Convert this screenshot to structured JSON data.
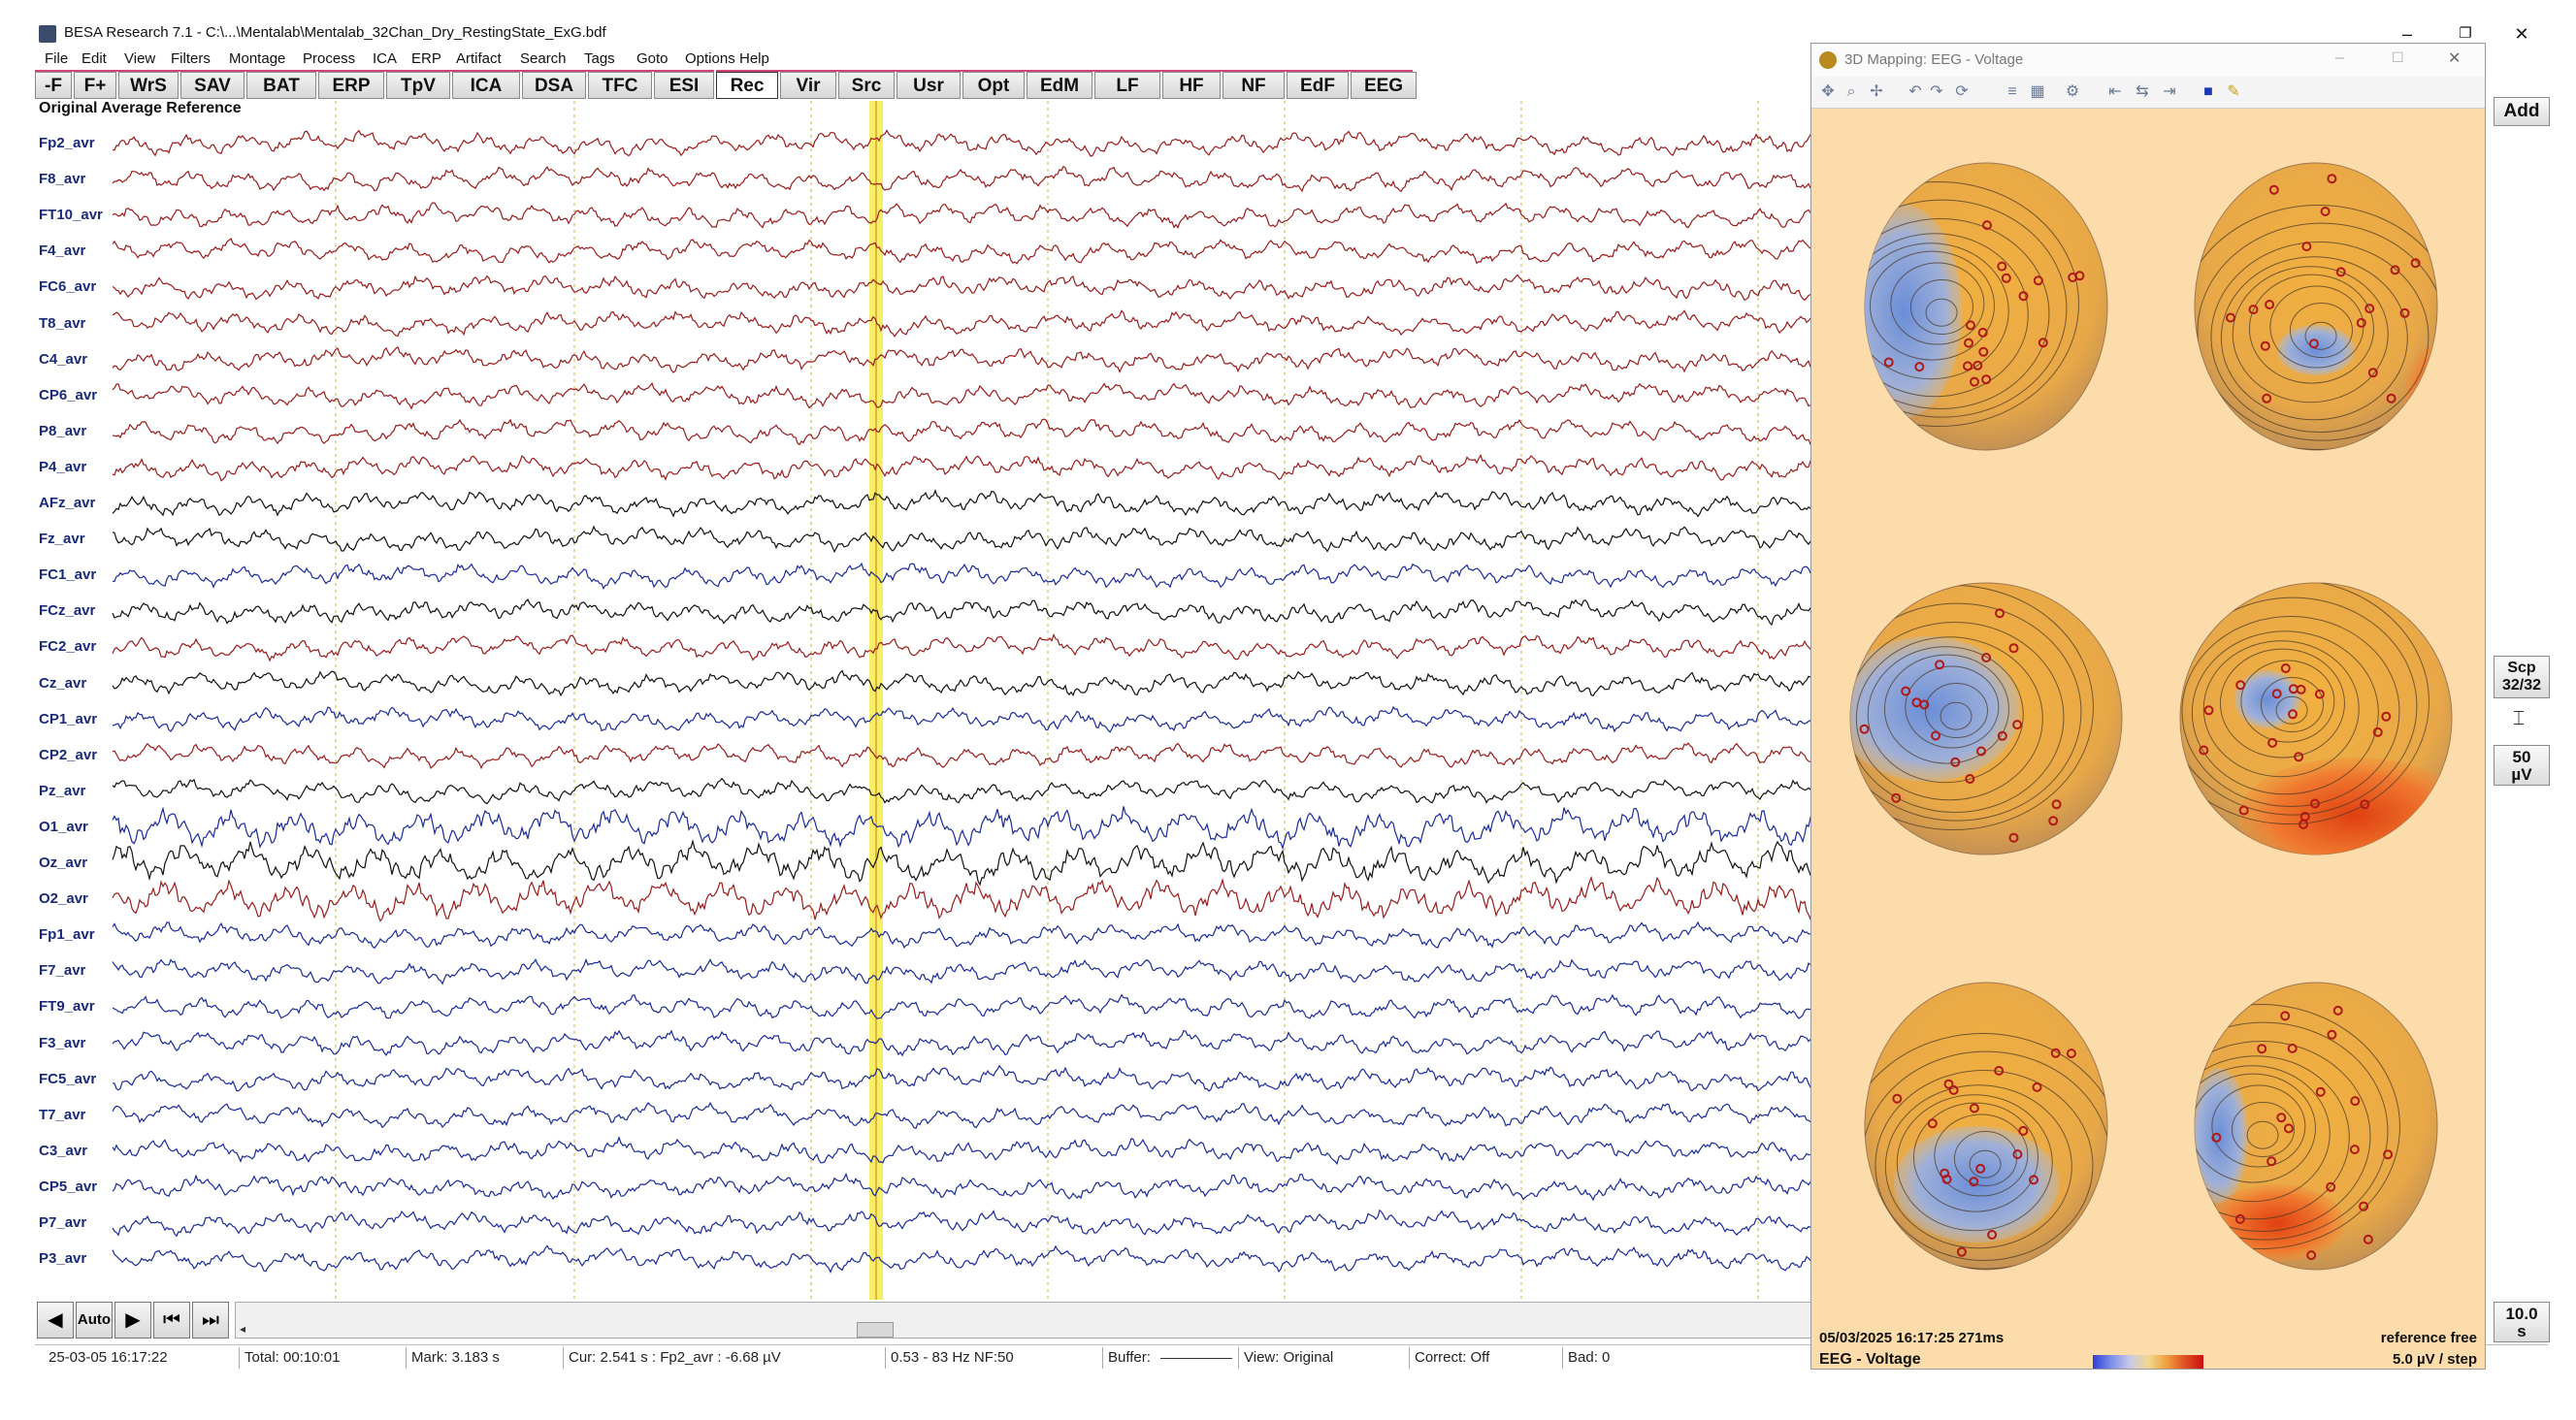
{
  "window": {
    "title": "BESA Research 7.1 - C:\\...\\Mentalab\\Mentalab_32Chan_Dry_RestingState_ExG.bdf",
    "minimize": "–",
    "maximize": "❐",
    "close": "✕"
  },
  "menu": [
    "File",
    "Edit",
    "View",
    "Filters",
    "Montage",
    "Process",
    "ICA",
    "ERP",
    "Artifact",
    "Search",
    "Tags",
    "Goto",
    "Options",
    "Help"
  ],
  "toolbar": [
    "-F",
    "F+",
    "WrS",
    "SAV",
    "BAT",
    "ERP",
    "TpV",
    "ICA",
    "DSA",
    "TFC",
    "ESI",
    "Rec",
    "Vir",
    "Src",
    "Usr",
    "Opt",
    "EdM",
    "LF",
    "HF",
    "NF",
    "EdF",
    "EEG"
  ],
  "toolbar_active": "Rec",
  "montage_label": "Original Average Reference",
  "channels": [
    {
      "name": "Fp2_avr",
      "color": "#9b1b1b"
    },
    {
      "name": "F8_avr",
      "color": "#9b1b1b"
    },
    {
      "name": "FT10_avr",
      "color": "#9b1b1b"
    },
    {
      "name": "F4_avr",
      "color": "#9b1b1b"
    },
    {
      "name": "FC6_avr",
      "color": "#9b1b1b"
    },
    {
      "name": "T8_avr",
      "color": "#9b1b1b"
    },
    {
      "name": "C4_avr",
      "color": "#9b1b1b"
    },
    {
      "name": "CP6_avr",
      "color": "#9b1b1b"
    },
    {
      "name": "P8_avr",
      "color": "#9b1b1b"
    },
    {
      "name": "P4_avr",
      "color": "#9b1b1b"
    },
    {
      "name": "AFz_avr",
      "color": "#111111"
    },
    {
      "name": "Fz_avr",
      "color": "#111111"
    },
    {
      "name": "FC1_avr",
      "color": "#1a2a9a"
    },
    {
      "name": "FCz_avr",
      "color": "#111111"
    },
    {
      "name": "FC2_avr",
      "color": "#9b1b1b"
    },
    {
      "name": "Cz_avr",
      "color": "#111111"
    },
    {
      "name": "CP1_avr",
      "color": "#1a2a9a"
    },
    {
      "name": "CP2_avr",
      "color": "#9b1b1b"
    },
    {
      "name": "Pz_avr",
      "color": "#111111"
    },
    {
      "name": "O1_avr",
      "color": "#1a2a9a"
    },
    {
      "name": "Oz_avr",
      "color": "#111111"
    },
    {
      "name": "O2_avr",
      "color": "#9b1b1b"
    },
    {
      "name": "Fp1_avr",
      "color": "#1a2a9a"
    },
    {
      "name": "F7_avr",
      "color": "#1a2a9a"
    },
    {
      "name": "FT9_avr",
      "color": "#1a2a9a"
    },
    {
      "name": "F3_avr",
      "color": "#1a2a9a"
    },
    {
      "name": "FC5_avr",
      "color": "#1a2a9a"
    },
    {
      "name": "T7_avr",
      "color": "#1a2a9a"
    },
    {
      "name": "C3_avr",
      "color": "#1a2a9a"
    },
    {
      "name": "CP5_avr",
      "color": "#1a2a9a"
    },
    {
      "name": "P7_avr",
      "color": "#1a2a9a"
    },
    {
      "name": "P3_avr",
      "color": "#1a2a9a"
    }
  ],
  "navigation": {
    "auto_label": "Auto"
  },
  "status": {
    "datetime": "25-03-05  16:17:22",
    "total": "Total: 00:10:01",
    "mark": "Mark: 3.183 s",
    "cursor": "Cur: 2.541 s : Fp2_avr : -6.68 µV",
    "filter": "0.53 - 83 Hz  NF:50",
    "buffer": "Buffer:",
    "view": "View: Original",
    "correct": "Correct: Off",
    "bad": "Bad: 0"
  },
  "mapping_window": {
    "title": "3D Mapping: EEG - Voltage",
    "timestamp": "05/03/2025 16:17:25 271ms",
    "reference": "reference free",
    "mode": "EEG - Voltage",
    "scale": "5.0 µV / step"
  },
  "right_panel": {
    "add": "Add",
    "scp": "Scp",
    "scp_count": "32/32",
    "amp": "50",
    "amp_unit": "µV",
    "time": "10.0",
    "time_unit": "s"
  }
}
